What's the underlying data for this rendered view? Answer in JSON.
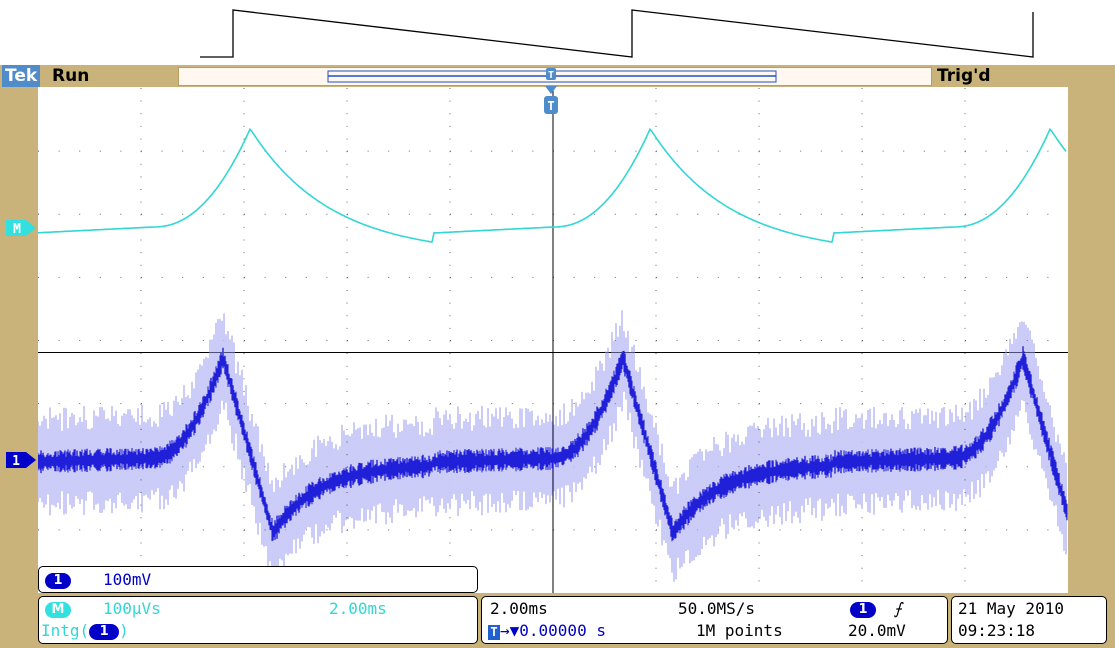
{
  "header": {
    "brand": "Tek",
    "run_status": "Run",
    "trigger_status": "Trig'd",
    "trigger_marker": "T"
  },
  "markers": {
    "math": "M",
    "channel1": "1"
  },
  "channel1_readout": {
    "badge": "1",
    "scale": "100mV"
  },
  "math_readout": {
    "badge": "M",
    "scale": "100µVs",
    "time_scale": "2.00ms",
    "function_prefix": "Intg(",
    "function_badge": "1",
    "function_suffix": ")"
  },
  "horizontal_readout": {
    "time_div": "2.00ms",
    "sample_rate": "50.0MS/s",
    "trigger_position_icon": "T",
    "trigger_position": "→▼0.00000 s",
    "record_length": "1M points"
  },
  "trigger_readout": {
    "source_badge": "1",
    "slope_icon": "rising-edge-icon",
    "slope_glyph": "⨍",
    "level": "20.0mV"
  },
  "datetime": {
    "date": "21 May 2010",
    "time": "09:23:18"
  },
  "colors": {
    "bezel": "#c9b37a",
    "channel1": "#0000c8",
    "channel1_noise": "#9a9af0",
    "math": "#33d6d6",
    "brand": "#4f8cc9"
  }
}
